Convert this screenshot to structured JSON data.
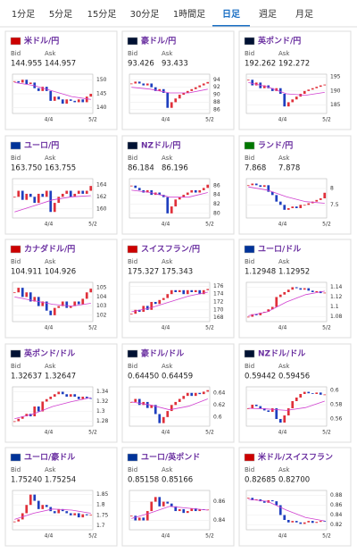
{
  "tabs": [
    "1分足",
    "5分足",
    "15分足",
    "30分足",
    "1時間足",
    "日足",
    "週足",
    "月足"
  ],
  "active_tab": 5,
  "bid_label": "Bid",
  "ask_label": "Ask",
  "pairs": [
    {
      "name": "米ドル/円",
      "bid": "144.955",
      "ask": "144.957",
      "ylim": [
        138,
        152
      ],
      "yticks": [
        150,
        145,
        140
      ],
      "xlabels": [
        "4/4",
        "5/2"
      ],
      "closes": [
        149.5,
        149,
        150,
        148.5,
        149,
        147,
        146,
        147.5,
        146,
        142.5,
        144,
        143,
        141.5,
        143,
        142.5,
        142,
        143,
        142,
        144,
        145
      ],
      "ma": [
        149,
        148,
        146,
        144,
        143
      ]
    },
    {
      "name": "豪ドル/円",
      "bid": "93.426",
      "ask": "93.433",
      "ylim": [
        85,
        95.5
      ],
      "yticks": [
        94,
        92,
        90,
        88,
        86
      ],
      "xlabels": [
        "4/4",
        "5/2"
      ],
      "closes": [
        93,
        93.5,
        93,
        92.5,
        93,
        92,
        91,
        91.5,
        90.5,
        86.5,
        88,
        89,
        90,
        90.5,
        91,
        91.5,
        92,
        92.5,
        93,
        93.4
      ],
      "ma": [
        92,
        91.5,
        90.5,
        90.5,
        91.5
      ]
    },
    {
      "name": "英ポンド/円",
      "bid": "192.262",
      "ask": "192.272",
      "ylim": [
        182,
        196
      ],
      "yticks": [
        195,
        190,
        185
      ],
      "xlabels": [
        "4/4",
        "5/2"
      ],
      "closes": [
        194,
        192,
        193,
        191,
        192,
        191,
        190,
        191,
        189,
        184.5,
        186,
        187,
        188,
        189,
        190,
        190.5,
        191,
        191.5,
        192,
        192.3
      ],
      "ma": [
        193,
        191.5,
        189,
        188.5,
        189.5
      ]
    },
    {
      "name": "ユーロ/円",
      "bid": "163.750",
      "ask": "163.755",
      "ylim": [
        158.5,
        165
      ],
      "yticks": [
        164,
        162,
        160
      ],
      "xlabels": [
        "4/4",
        "5/2"
      ],
      "closes": [
        162,
        163,
        161.5,
        162.5,
        162,
        161,
        162.5,
        162,
        163,
        159.5,
        161,
        162,
        162.5,
        163,
        162,
        162.5,
        163,
        162.5,
        163,
        163.8
      ],
      "ma": [
        159.5,
        160.5,
        161.5,
        162,
        162.2
      ]
    },
    {
      "name": "NZドル/円",
      "bid": "86.184",
      "ask": "86.196",
      "ylim": [
        79,
        87.5
      ],
      "yticks": [
        86,
        84,
        82,
        80
      ],
      "xlabels": [
        "4/4",
        "5/2"
      ],
      "closes": [
        86,
        85.5,
        85,
        84.5,
        85,
        84,
        84.5,
        84,
        83.5,
        80,
        81.5,
        83,
        83.5,
        84,
        84.5,
        85,
        84.5,
        85,
        85.5,
        86.2
      ],
      "ma": [
        85,
        84.5,
        83.5,
        83.5,
        84.5
      ]
    },
    {
      "name": "ランド/円",
      "bid": "7.868",
      "ask": "7.878",
      "ylim": [
        7.1,
        8.3
      ],
      "yticks": [
        8,
        7.5
      ],
      "xlabels": [
        "4/4",
        "5/2"
      ],
      "closes": [
        8.1,
        8.15,
        8.1,
        8.05,
        8.1,
        7.9,
        7.8,
        7.6,
        7.5,
        7.35,
        7.4,
        7.45,
        7.4,
        7.5,
        7.5,
        7.55,
        7.6,
        7.65,
        7.7,
        7.87
      ],
      "ma": [
        8.05,
        7.95,
        7.75,
        7.6,
        7.55
      ]
    },
    {
      "name": "カナダドル/円",
      "bid": "104.911",
      "ask": "104.926",
      "ylim": [
        101.3,
        105.6
      ],
      "yticks": [
        105,
        104,
        103,
        102
      ],
      "xlabels": [
        "4/4",
        "5/2"
      ],
      "closes": [
        104.5,
        105,
        104,
        104.5,
        103.5,
        104,
        103,
        103.5,
        102.5,
        102,
        102.8,
        103,
        103.5,
        102.8,
        103,
        103.5,
        103.2,
        103.8,
        104.5,
        104.9
      ],
      "ma": [
        104,
        103.6,
        103.2,
        103,
        103.3
      ]
    },
    {
      "name": "スイスフラン/円",
      "bid": "175.327",
      "ask": "175.343",
      "ylim": [
        167,
        177
      ],
      "yticks": [
        176,
        174,
        172,
        170,
        168
      ],
      "xlabels": [
        "4/4",
        "5/2"
      ],
      "closes": [
        169,
        170,
        169.5,
        171,
        170,
        172,
        171.5,
        172.5,
        173,
        174,
        175,
        174.5,
        175,
        174,
        175,
        174.5,
        175,
        174,
        175,
        175.3
      ],
      "ma": [
        169.5,
        170.5,
        172,
        173.5,
        174.5
      ]
    },
    {
      "name": "ユーロ/ドル",
      "bid": "1.12948",
      "ask": "1.12952",
      "ylim": [
        1.07,
        1.15
      ],
      "yticks": [
        1.14,
        1.12,
        1.1,
        1.08
      ],
      "xlabels": [
        "4/4",
        "5/2"
      ],
      "closes": [
        1.08,
        1.085,
        1.083,
        1.088,
        1.09,
        1.095,
        1.1,
        1.12,
        1.125,
        1.13,
        1.135,
        1.14,
        1.138,
        1.135,
        1.138,
        1.133,
        1.13,
        1.132,
        1.128,
        1.129
      ],
      "ma": [
        1.082,
        1.09,
        1.11,
        1.125,
        1.132
      ]
    },
    {
      "name": "英ポンド/ドル",
      "bid": "1.32637",
      "ask": "1.32647",
      "ylim": [
        1.27,
        1.35
      ],
      "yticks": [
        1.34,
        1.32,
        1.3,
        1.28
      ],
      "xlabels": [
        "4/4",
        "5/2"
      ],
      "closes": [
        1.28,
        1.285,
        1.29,
        1.295,
        1.29,
        1.31,
        1.3,
        1.32,
        1.325,
        1.33,
        1.335,
        1.34,
        1.335,
        1.33,
        1.335,
        1.33,
        1.325,
        1.33,
        1.327,
        1.326
      ],
      "ma": [
        1.285,
        1.295,
        1.31,
        1.32,
        1.328
      ]
    },
    {
      "name": "豪ドル/ドル",
      "bid": "0.64450",
      "ask": "0.64459",
      "ylim": [
        0.585,
        0.65
      ],
      "yticks": [
        0.64,
        0.62,
        0.6
      ],
      "xlabels": [
        "4/4",
        "5/2"
      ],
      "closes": [
        0.625,
        0.63,
        0.62,
        0.625,
        0.615,
        0.62,
        0.605,
        0.59,
        0.6,
        0.61,
        0.62,
        0.625,
        0.63,
        0.635,
        0.64,
        0.635,
        0.64,
        0.638,
        0.642,
        0.6445
      ],
      "ma": [
        0.625,
        0.62,
        0.612,
        0.618,
        0.63
      ]
    },
    {
      "name": "NZドル/ドル",
      "bid": "0.59442",
      "ask": "0.59456",
      "ylim": [
        0.55,
        0.605
      ],
      "yticks": [
        0.6,
        0.58,
        0.56
      ],
      "xlabels": [
        "4/4",
        "5/2"
      ],
      "closes": [
        0.575,
        0.58,
        0.578,
        0.575,
        0.572,
        0.57,
        0.575,
        0.56,
        0.555,
        0.565,
        0.575,
        0.585,
        0.59,
        0.595,
        0.598,
        0.596,
        0.595,
        0.597,
        0.594,
        0.5944
      ],
      "ma": [
        0.575,
        0.574,
        0.572,
        0.576,
        0.585
      ]
    },
    {
      "name": "ユーロ/豪ドル",
      "bid": "1.75240",
      "ask": "1.75254",
      "ylim": [
        1.68,
        1.87
      ],
      "yticks": [
        1.85,
        1.8,
        1.75,
        1.7
      ],
      "xlabels": [
        "4/4",
        "5/2"
      ],
      "closes": [
        1.72,
        1.73,
        1.76,
        1.8,
        1.85,
        1.82,
        1.78,
        1.8,
        1.79,
        1.77,
        1.76,
        1.78,
        1.77,
        1.76,
        1.75,
        1.76,
        1.74,
        1.755,
        1.75,
        1.7524
      ],
      "ma": [
        1.73,
        1.76,
        1.78,
        1.775,
        1.76
      ]
    },
    {
      "name": "ユーロ/英ポンド",
      "bid": "0.85158",
      "ask": "0.85166",
      "ylim": [
        0.83,
        0.872
      ],
      "yticks": [
        0.86,
        0.84
      ],
      "xlabels": [
        "4/4",
        "5/2"
      ],
      "closes": [
        0.845,
        0.84,
        0.843,
        0.84,
        0.85,
        0.86,
        0.865,
        0.855,
        0.86,
        0.858,
        0.855,
        0.85,
        0.852,
        0.848,
        0.85,
        0.853,
        0.85,
        0.852,
        0.851,
        0.8516
      ],
      "ma": [
        0.842,
        0.848,
        0.855,
        0.853,
        0.851
      ]
    },
    {
      "name": "米ドル/スイスフラン",
      "bid": "0.82685",
      "ask": "0.82700",
      "ylim": [
        0.81,
        0.89
      ],
      "yticks": [
        0.88,
        0.86,
        0.84,
        0.82
      ],
      "xlabels": [
        "4/4",
        "5/2"
      ],
      "closes": [
        0.875,
        0.87,
        0.872,
        0.868,
        0.865,
        0.87,
        0.868,
        0.86,
        0.84,
        0.83,
        0.825,
        0.828,
        0.825,
        0.822,
        0.825,
        0.828,
        0.824,
        0.826,
        0.828,
        0.8268
      ],
      "ma": [
        0.872,
        0.868,
        0.85,
        0.835,
        0.828
      ]
    }
  ]
}
